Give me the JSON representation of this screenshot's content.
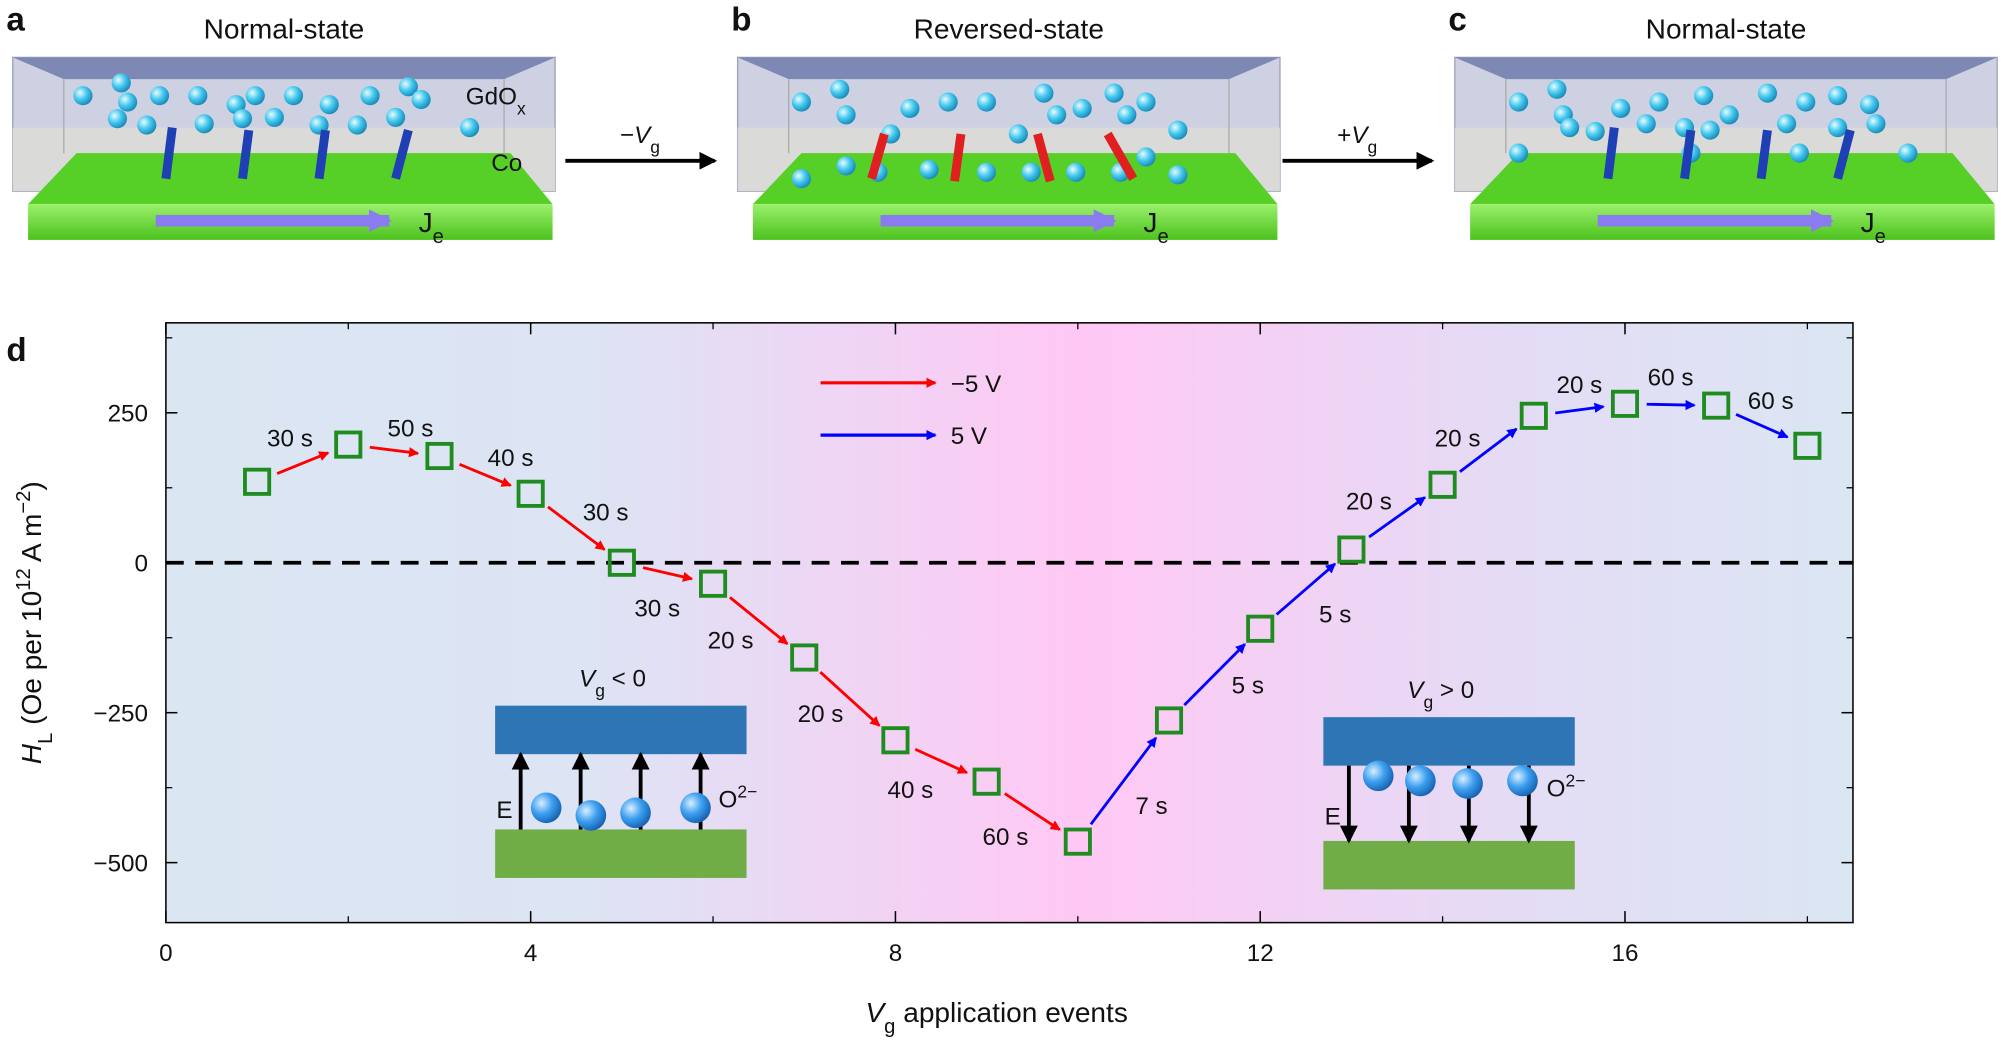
{
  "figure": {
    "panels": [
      {
        "label": "a",
        "title": "Normal-state",
        "oxide": "GdO",
        "oxide_sub": "x",
        "metal": "Co",
        "current": "J",
        "current_sub": "e"
      },
      {
        "label": "b",
        "title": "Reversed-state",
        "current": "J",
        "current_sub": "e"
      },
      {
        "label": "c",
        "title": "Normal-state",
        "current": "J",
        "current_sub": "e"
      }
    ],
    "transitions": [
      {
        "sign": "−",
        "symbol": "V",
        "sub": "g"
      },
      {
        "sign": "+",
        "symbol": "V",
        "sub": "g"
      }
    ]
  },
  "chart_data": {
    "type": "scatter",
    "panel_label": "d",
    "x": [
      1,
      2,
      3,
      4,
      5,
      6,
      7,
      8,
      9,
      10,
      11,
      12,
      13,
      14,
      15,
      16,
      17,
      18
    ],
    "y": [
      135,
      197,
      178,
      115,
      0,
      -35,
      -158,
      -296,
      -365,
      -465,
      -263,
      -110,
      22,
      130,
      245,
      265,
      262,
      195
    ],
    "marker_color": "#1e8c1e",
    "xlim": [
      0,
      18.5
    ],
    "xticks": [
      0,
      4,
      8,
      12,
      16
    ],
    "xminorticks": [
      2,
      6,
      10,
      14,
      18
    ],
    "ylim": [
      -600,
      400
    ],
    "yticks": [
      {
        "value": -500,
        "label": "−500"
      },
      {
        "value": -250,
        "label": "−250"
      },
      0,
      250
    ],
    "yminorticks": [
      -375,
      -125,
      125,
      375
    ],
    "xlabel": {
      "symbol": "V",
      "sub": "g",
      "text": " application events"
    },
    "ylabel": {
      "symbol": "H",
      "sub": "L",
      "text1": " (Oe per 10",
      "sup1": "12",
      "text2": " A m",
      "sup2": "−2",
      "text3": ")"
    },
    "steps": [
      {
        "name": "−5 V",
        "color": "#ff0000",
        "labels": [
          "30 s",
          "50 s",
          "40 s",
          "30 s",
          "30 s",
          "20 s",
          "20 s",
          "40 s",
          "60 s"
        ]
      },
      {
        "name": "5 V",
        "color": "#0000ff",
        "labels": [
          "7 s",
          "5 s",
          "5 s",
          "20 s",
          "20 s",
          "20 s",
          "60 s",
          "60 s"
        ]
      }
    ],
    "insets": [
      {
        "symbol": "V",
        "sub": "g",
        "relation": " < 0",
        "field": "E",
        "ion": "O",
        "ion_sup": "2−"
      },
      {
        "symbol": "V",
        "sub": "g",
        "relation": " > 0",
        "field": "E",
        "ion": "O",
        "ion_sup": "2−"
      }
    ]
  }
}
